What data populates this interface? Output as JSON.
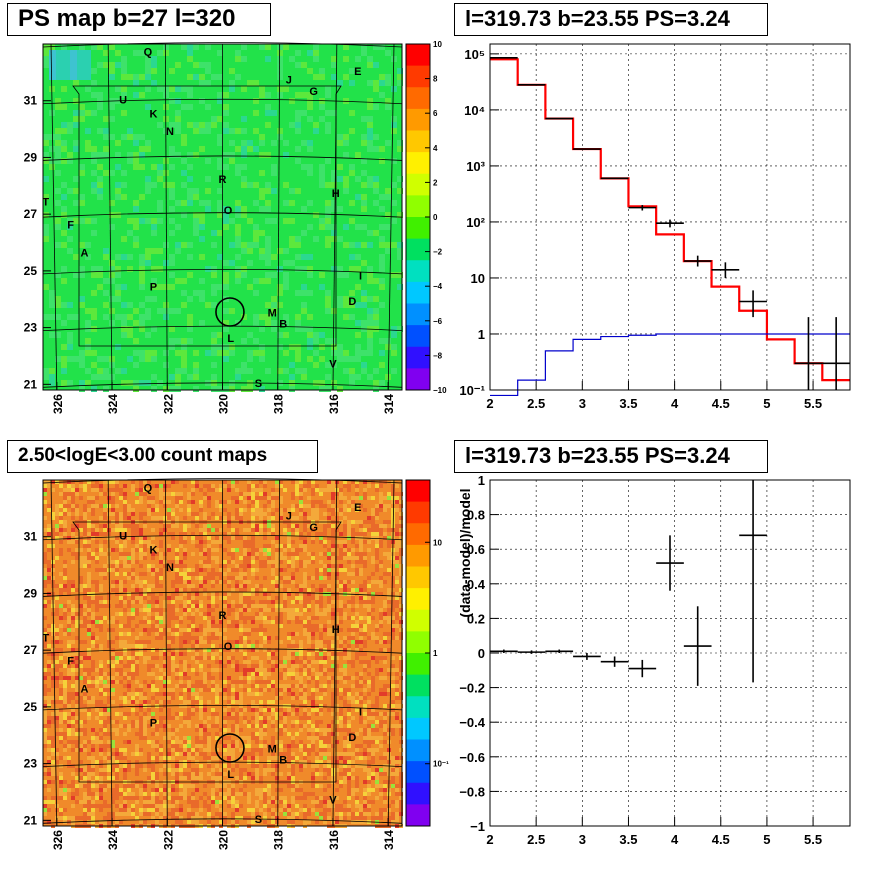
{
  "titles": {
    "top_left": "PS map b=27 l=320",
    "top_right": "l=319.73 b=23.55 PS=3.24",
    "bottom_left": "2.50<logE<3.00 count maps",
    "bottom_right": "l=319.73 b=23.55 PS=3.24"
  },
  "colors": {
    "data": "#000000",
    "model": "#ff0000",
    "background_model": "#0000cc",
    "ps_map_base": "#22e24a",
    "count_map_base": "#f08a2a"
  },
  "chart_data": [
    {
      "type": "heatmap",
      "title": "PS map b=27 l=320",
      "xlim": [
        326.5,
        313.5
      ],
      "ylim": [
        20.8,
        33
      ],
      "x_ticks": [
        "326",
        "324",
        "322",
        "320",
        "318",
        "316",
        "314"
      ],
      "y_ticks": [
        "21",
        "23",
        "25",
        "27",
        "29",
        "31"
      ],
      "colorbar": {
        "min": -10,
        "max": 10,
        "scale": "linear",
        "tick_labels": [
          "10",
          "8",
          "6",
          "4",
          "2",
          "0",
          "−2",
          "−4",
          "−6",
          "−8",
          "−10"
        ]
      },
      "grid": true,
      "source_labels": [
        {
          "label": "Q",
          "l": 322.7,
          "b": 32.6
        },
        {
          "label": "J",
          "l": 317.6,
          "b": 31.6
        },
        {
          "label": "E",
          "l": 315.1,
          "b": 31.9
        },
        {
          "label": "G",
          "l": 316.7,
          "b": 31.2
        },
        {
          "label": "U",
          "l": 323.6,
          "b": 30.9
        },
        {
          "label": "K",
          "l": 322.5,
          "b": 30.4
        },
        {
          "label": "N",
          "l": 321.9,
          "b": 29.8
        },
        {
          "label": "R",
          "l": 320.0,
          "b": 28.1
        },
        {
          "label": "H",
          "l": 315.9,
          "b": 27.6
        },
        {
          "label": "T",
          "l": 326.4,
          "b": 27.3
        },
        {
          "label": "O",
          "l": 319.8,
          "b": 27.0
        },
        {
          "label": "F",
          "l": 325.5,
          "b": 26.5
        },
        {
          "label": "A",
          "l": 325.0,
          "b": 25.5
        },
        {
          "label": "I",
          "l": 315.0,
          "b": 24.7
        },
        {
          "label": "P",
          "l": 322.5,
          "b": 24.3
        },
        {
          "label": "D",
          "l": 315.3,
          "b": 23.8
        },
        {
          "label": "M",
          "l": 318.2,
          "b": 23.4
        },
        {
          "label": "B",
          "l": 317.8,
          "b": 23.0
        },
        {
          "label": "L",
          "l": 319.7,
          "b": 22.5
        },
        {
          "label": "V",
          "l": 316.0,
          "b": 21.6
        },
        {
          "label": "S",
          "l": 318.7,
          "b": 20.9
        }
      ],
      "circle": {
        "l": 319.73,
        "b": 23.55
      }
    },
    {
      "type": "line",
      "title": "l=319.73 b=23.55 PS=3.24",
      "xlim": [
        2,
        5.9
      ],
      "ylim": [
        0.1,
        150000
      ],
      "log_y": true,
      "x_ticks": [
        "2",
        "2.5",
        "3",
        "3.5",
        "4",
        "4.5",
        "5",
        "5.5"
      ],
      "y_ticks": [
        "10⁻¹",
        "1",
        "10",
        "10²",
        "10³",
        "10⁴",
        "10⁵"
      ],
      "grid": true,
      "series": [
        {
          "step_edges": [
            2.0,
            2.3,
            2.6,
            2.9,
            3.2,
            3.5,
            3.8,
            4.1,
            4.4,
            4.7,
            5.0,
            5.3,
            5.6,
            5.9
          ],
          "values": [
            80000,
            28000,
            7000,
            2000,
            600,
            190,
            60,
            20,
            7,
            2.6,
            0.8,
            0.3,
            0.15
          ]
        },
        {
          "step_edges": [
            2.0,
            2.3,
            2.6,
            2.9,
            3.2,
            3.5,
            3.8,
            4.1,
            4.4,
            4.7,
            5.0,
            5.3,
            5.6,
            5.9
          ],
          "values": [
            0.08,
            0.15,
            0.5,
            0.8,
            0.9,
            0.95,
            1.0,
            1.0,
            1.0,
            1.0,
            1.0,
            1.0,
            1.0
          ]
        },
        {
          "x": [
            2.15,
            2.45,
            2.75,
            3.05,
            3.35,
            3.65,
            3.95,
            4.25,
            4.55,
            4.85,
            5.45,
            5.75
          ],
          "y": [
            85000,
            28000,
            7000,
            2000,
            600,
            180,
            95,
            20,
            14,
            3.8,
            0.3,
            0.3
          ],
          "err_low": [
            0,
            0,
            0,
            0,
            0,
            20,
            15,
            4,
            4,
            1.8,
            0.2,
            0.2
          ],
          "err_high": [
            0,
            0,
            0,
            0,
            0,
            20,
            15,
            5,
            5,
            2.2,
            1.7,
            1.7
          ]
        }
      ]
    },
    {
      "type": "heatmap",
      "title": "2.50<logE<3.00 count maps",
      "xlim": [
        326.5,
        313.5
      ],
      "ylim": [
        20.8,
        33
      ],
      "x_ticks": [
        "326",
        "324",
        "322",
        "320",
        "318",
        "316",
        "314"
      ],
      "y_ticks": [
        "21",
        "23",
        "25",
        "27",
        "29",
        "31"
      ],
      "colorbar": {
        "scale": "log",
        "tick_labels": [
          "10",
          "1",
          "10⁻¹"
        ]
      },
      "grid": true,
      "circle": {
        "l": 319.73,
        "b": 23.55
      }
    },
    {
      "type": "scatter",
      "title": "l=319.73 b=23.55 PS=3.24",
      "xlim": [
        2,
        5.9
      ],
      "ylim": [
        -1,
        1
      ],
      "ylabel": "(data-model)/model",
      "x_ticks": [
        "2",
        "2.5",
        "3",
        "3.5",
        "4",
        "4.5",
        "5",
        "5.5"
      ],
      "y_ticks": [
        "1",
        "0.8",
        "0.6",
        "0.4",
        "0.2",
        "0",
        "−0.2",
        "−0.4",
        "−0.6",
        "−0.8",
        "−1"
      ],
      "grid": true,
      "series": [
        {
          "x": [
            2.15,
            2.45,
            2.75,
            3.05,
            3.35,
            3.65,
            3.95,
            4.25,
            4.85
          ],
          "y": [
            0.01,
            0.005,
            0.01,
            -0.02,
            -0.05,
            -0.09,
            0.52,
            0.04,
            0.68
          ],
          "err": [
            0.01,
            0.01,
            0.01,
            0.02,
            0.03,
            0.05,
            0.16,
            0.23,
            0.85
          ],
          "half_width": [
            0.15,
            0.15,
            0.15,
            0.15,
            0.15,
            0.15,
            0.15,
            0.15,
            0.15
          ]
        }
      ]
    }
  ]
}
